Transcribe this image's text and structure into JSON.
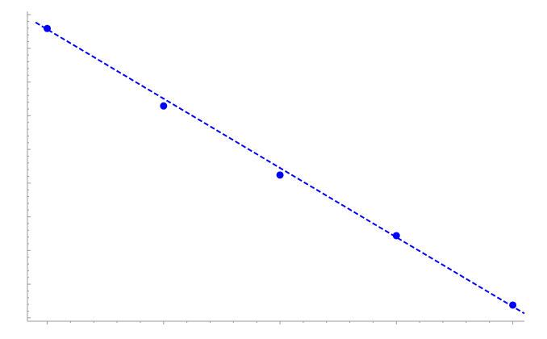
{
  "chart_data": {
    "type": "scatter",
    "title": "",
    "xlabel": "",
    "ylabel": "",
    "x": [
      1,
      2,
      3,
      4,
      5
    ],
    "y": [
      9.59,
      7.29,
      5.24,
      3.44,
      1.38
    ],
    "xlim": [
      0.83,
      5.1
    ],
    "ylim": [
      0.9,
      10.1
    ],
    "fit_line": {
      "x": [
        0.9,
        5.1
      ],
      "y": [
        9.77,
        1.13
      ]
    },
    "grid": false,
    "legend": "none",
    "colors": {
      "points": "#0000ff",
      "fit": "#0000ff",
      "axis": "#9a9a9a"
    }
  }
}
